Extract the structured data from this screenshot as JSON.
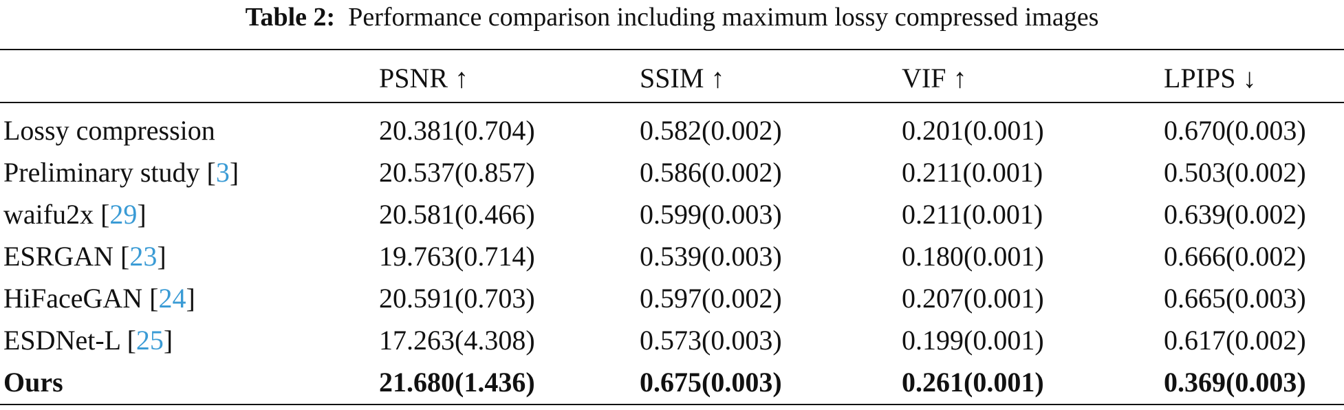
{
  "caption": {
    "label": "Table 2:",
    "text": "Performance comparison including maximum lossy compressed images"
  },
  "table": {
    "header": [
      "PSNR ↑",
      "SSIM ↑",
      "VIF ↑",
      "LPIPS ↓"
    ],
    "rows": [
      {
        "method": [
          "Lossy compression"
        ],
        "cells": [
          "20.381(0.704)",
          "0.582(0.002)",
          "0.201(0.001)",
          "0.670(0.003)"
        ]
      },
      {
        "method": [
          "Preliminary study [",
          "3",
          "]"
        ],
        "cells": [
          "20.537(0.857)",
          "0.586(0.002)",
          "0.211(0.001)",
          "0.503(0.002)"
        ]
      },
      {
        "method": [
          "waifu2x [",
          "29",
          "]"
        ],
        "cells": [
          "20.581(0.466)",
          "0.599(0.003)",
          "0.211(0.001)",
          "0.639(0.002)"
        ]
      },
      {
        "method": [
          "ESRGAN [",
          "23",
          "]"
        ],
        "cells": [
          "19.763(0.714)",
          "0.539(0.003)",
          "0.180(0.001)",
          "0.666(0.002)"
        ]
      },
      {
        "method": [
          "HiFaceGAN [",
          "24",
          "]"
        ],
        "cells": [
          "20.591(0.703)",
          "0.597(0.002)",
          "0.207(0.001)",
          "0.665(0.003)"
        ]
      },
      {
        "method": [
          "ESDNet-L [",
          "25",
          "]"
        ],
        "cells": [
          "17.263(4.308)",
          "0.573(0.003)",
          "0.199(0.001)",
          "0.617(0.002)"
        ]
      },
      {
        "method": [
          "Ours"
        ],
        "cells": [
          "21.680(1.436)",
          "0.675(0.003)",
          "0.261(0.001)",
          "0.369(0.003)"
        ],
        "emphasis": "bold"
      }
    ]
  }
}
